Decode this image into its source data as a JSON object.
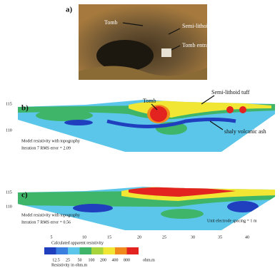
{
  "panels": {
    "a": {
      "label": "a)",
      "annotations": [
        "Tomb",
        "Semi-lithoid tuff",
        "Tomb entrance"
      ]
    },
    "b": {
      "label": "b)",
      "elevation_ticks": [
        "115",
        "110"
      ],
      "annotations": [
        "Tomb",
        "Semi-lithoid tuff",
        "shaly volcanic ash"
      ],
      "model_note": "Model resistivity with topography",
      "iteration_note": "Iteration 7 RMS error = 2.09"
    },
    "c": {
      "label": "c)",
      "elevation_ticks": [
        "115",
        "110"
      ],
      "model_note": "Model resistivity with topography",
      "iteration_note": "Iteration 7 RMS error = 0.56",
      "spacing_note": "Unit electrode spacing = 1 m"
    }
  },
  "distance_ticks": [
    "5",
    "10",
    "15",
    "20",
    "25",
    "30",
    "35",
    "40"
  ],
  "colorbar": {
    "title": "Calculated apparent resistivity",
    "ticks": [
      "12.5",
      "25",
      "50",
      "100",
      "200",
      "400",
      "800"
    ],
    "unit": "ohm.m",
    "caption": "Resistivity in ohm.m"
  }
}
